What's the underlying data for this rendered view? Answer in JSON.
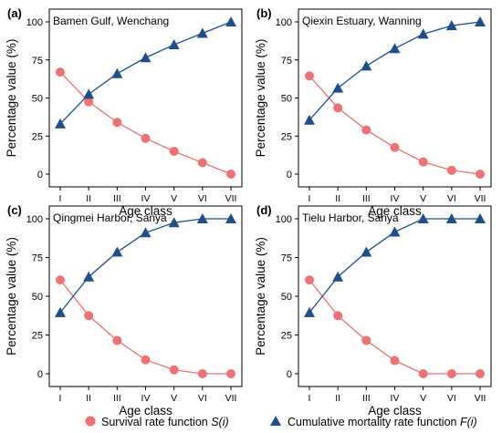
{
  "figure": {
    "legend": {
      "survival_label": "Survival rate function ",
      "survival_italic": "S(i)",
      "mortality_label": "Cumulative mortality rate function ",
      "mortality_italic": "F(i)"
    }
  },
  "colors": {
    "survival": "#F07171",
    "mortality": "#1F4E8C",
    "frame": "#000000"
  },
  "chart_data": [
    {
      "type": "line",
      "panel_label": "(a)",
      "title": "Bamen Gulf, Wenchang",
      "xlabel": "Age class",
      "ylabel": "Percentage value (%)",
      "categories": [
        "I",
        "II",
        "III",
        "IV",
        "V",
        "VI",
        "VII"
      ],
      "yticks": [
        0,
        25,
        50,
        75,
        100
      ],
      "ylim": [
        0,
        100
      ],
      "series": [
        {
          "key": "survival",
          "values": [
            67,
            47.5,
            34,
            23.5,
            15,
            7.5,
            0
          ]
        },
        {
          "key": "mortality",
          "values": [
            33,
            52.5,
            66,
            76.5,
            85,
            92.5,
            100
          ]
        }
      ]
    },
    {
      "type": "line",
      "panel_label": "(b)",
      "title": "Qiexin Estuary, Wanning",
      "xlabel": "Age class",
      "ylabel": "Percentage value (%)",
      "categories": [
        "I",
        "II",
        "III",
        "IV",
        "V",
        "VI",
        "VII"
      ],
      "yticks": [
        0,
        25,
        50,
        75,
        100
      ],
      "ylim": [
        0,
        100
      ],
      "series": [
        {
          "key": "survival",
          "values": [
            64.5,
            43.5,
            29,
            17.5,
            8,
            2.5,
            0
          ]
        },
        {
          "key": "mortality",
          "values": [
            35.5,
            56.5,
            71,
            82.5,
            92,
            97.5,
            100
          ]
        }
      ]
    },
    {
      "type": "line",
      "panel_label": "(c)",
      "title": "Qingmei Harbor, Sanya",
      "xlabel": "Age class",
      "ylabel": "Percentage value (%)",
      "categories": [
        "I",
        "II",
        "III",
        "IV",
        "V",
        "VI",
        "VII"
      ],
      "yticks": [
        0,
        25,
        50,
        75,
        100
      ],
      "ylim": [
        0,
        100
      ],
      "series": [
        {
          "key": "survival",
          "values": [
            60.5,
            37.5,
            21.5,
            9,
            2.5,
            0,
            0
          ]
        },
        {
          "key": "mortality",
          "values": [
            39.5,
            62.5,
            78.5,
            91,
            97.5,
            100,
            100
          ]
        }
      ]
    },
    {
      "type": "line",
      "panel_label": "(d)",
      "title": "Tielu Harbor, Sanya",
      "xlabel": "Age class",
      "ylabel": "Percentage value (%)",
      "categories": [
        "I",
        "II",
        "III",
        "IV",
        "V",
        "VI",
        "VII"
      ],
      "yticks": [
        0,
        25,
        50,
        75,
        100
      ],
      "ylim": [
        0,
        100
      ],
      "series": [
        {
          "key": "survival",
          "values": [
            60.5,
            37.5,
            21.5,
            8.5,
            0,
            0,
            0
          ]
        },
        {
          "key": "mortality",
          "values": [
            39.5,
            62.5,
            78.5,
            91.5,
            100,
            100,
            100
          ]
        }
      ]
    }
  ]
}
